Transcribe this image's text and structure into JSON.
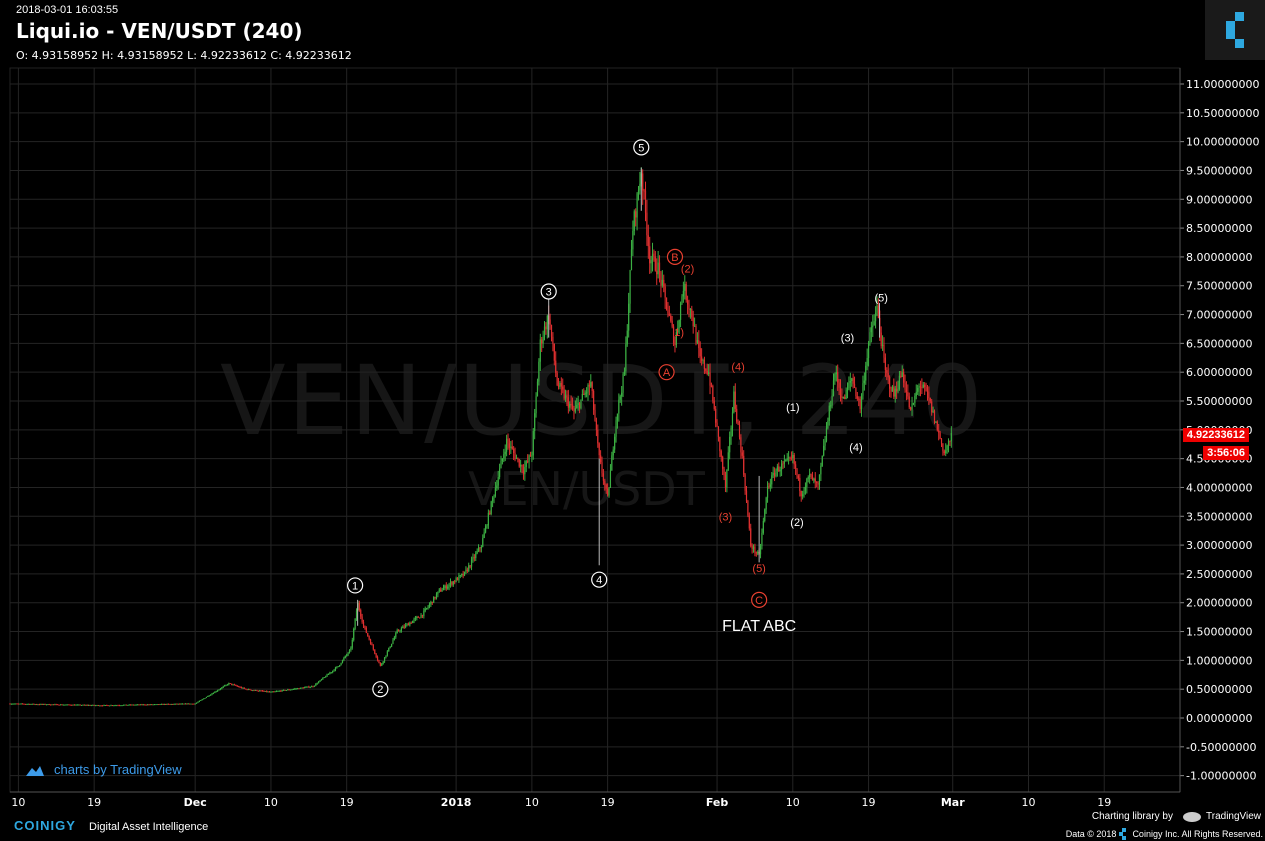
{
  "header": {
    "timestamp": "2018-03-01 16:03:55",
    "title": "Liqui.io - VEN/USDT (240)",
    "ohlc": "O: 4.93158952 H: 4.93158952 L: 4.92233612 C: 4.92233612"
  },
  "watermark": {
    "main": "VEN/USDT, 240",
    "sub": "VEN/USDT"
  },
  "current_price": {
    "value": "4.92233612",
    "countdown": "3:56:06"
  },
  "footer": {
    "tv_credit": "charts by TradingView",
    "coinigy": "COINIGY",
    "tagline": "Digital Asset Intelligence",
    "lib_credit": "Charting library by",
    "lib_tv": "TradingView",
    "copyright": "Data © 2018",
    "copyright2": "Coinigy Inc. All Rights Reserved."
  },
  "colors": {
    "up": "#3cb043",
    "down": "#e03030",
    "background": "#000000",
    "grid": "#242424",
    "accent": "#3d9be9",
    "annotation_white": "#ffffff",
    "annotation_red": "#e84030"
  },
  "chart_data": {
    "type": "candlestick",
    "ylim": [
      -1.2,
      11.3
    ],
    "y_ticks": [
      {
        "v": 11.0,
        "label": "11.00000000"
      },
      {
        "v": 10.5,
        "label": "10.50000000"
      },
      {
        "v": 10.0,
        "label": "10.00000000"
      },
      {
        "v": 9.5,
        "label": "9.50000000"
      },
      {
        "v": 9.0,
        "label": "9.00000000"
      },
      {
        "v": 8.5,
        "label": "8.50000000"
      },
      {
        "v": 8.0,
        "label": "8.00000000"
      },
      {
        "v": 7.5,
        "label": "7.50000000"
      },
      {
        "v": 7.0,
        "label": "7.00000000"
      },
      {
        "v": 6.5,
        "label": "6.50000000"
      },
      {
        "v": 6.0,
        "label": "6.00000000"
      },
      {
        "v": 5.5,
        "label": "5.50000000"
      },
      {
        "v": 5.0,
        "label": "5.00000000"
      },
      {
        "v": 4.5,
        "label": "4.50000000"
      },
      {
        "v": 4.0,
        "label": "4.00000000"
      },
      {
        "v": 3.5,
        "label": "3.50000000"
      },
      {
        "v": 3.0,
        "label": "3.00000000"
      },
      {
        "v": 2.5,
        "label": "2.50000000"
      },
      {
        "v": 2.0,
        "label": "2.00000000"
      },
      {
        "v": 1.5,
        "label": "1.50000000"
      },
      {
        "v": 1.0,
        "label": "1.00000000"
      },
      {
        "v": 0.5,
        "label": "0.50000000"
      },
      {
        "v": 0.0,
        "label": "0.00000000"
      },
      {
        "v": -0.5,
        "label": "-0.50000000"
      },
      {
        "v": -1.0,
        "label": "-1.00000000"
      }
    ],
    "x_ticks": [
      {
        "t": 0,
        "label": "10",
        "bold": false
      },
      {
        "t": 9,
        "label": "19",
        "bold": false
      },
      {
        "t": 21,
        "label": "Dec",
        "bold": true
      },
      {
        "t": 30,
        "label": "10",
        "bold": false
      },
      {
        "t": 39,
        "label": "19",
        "bold": false
      },
      {
        "t": 52,
        "label": "2018",
        "bold": true
      },
      {
        "t": 61,
        "label": "10",
        "bold": false
      },
      {
        "t": 70,
        "label": "19",
        "bold": false
      },
      {
        "t": 83,
        "label": "Feb",
        "bold": true
      },
      {
        "t": 92,
        "label": "10",
        "bold": false
      },
      {
        "t": 101,
        "label": "19",
        "bold": false
      },
      {
        "t": 111,
        "label": "Mar",
        "bold": true
      },
      {
        "t": 120,
        "label": "10",
        "bold": false
      },
      {
        "t": 129,
        "label": "19",
        "bold": false
      }
    ],
    "price_path": [
      [
        -1,
        0.25
      ],
      [
        10,
        0.22
      ],
      [
        21,
        0.25
      ],
      [
        25,
        0.6
      ],
      [
        27,
        0.5
      ],
      [
        30,
        0.45
      ],
      [
        35,
        0.55
      ],
      [
        38,
        0.9
      ],
      [
        39.5,
        1.2
      ],
      [
        40.3,
        2.0
      ],
      [
        41,
        1.6
      ],
      [
        43,
        0.9
      ],
      [
        45,
        1.5
      ],
      [
        48,
        1.8
      ],
      [
        50,
        2.2
      ],
      [
        53,
        2.5
      ],
      [
        55,
        3.0
      ],
      [
        58,
        4.8
      ],
      [
        60,
        4.3
      ],
      [
        61,
        4.6
      ],
      [
        62,
        6.5
      ],
      [
        63,
        7.0
      ],
      [
        64,
        5.8
      ],
      [
        66,
        5.3
      ],
      [
        68,
        5.8
      ],
      [
        69,
        4.5
      ],
      [
        70,
        3.8
      ],
      [
        71,
        5.2
      ],
      [
        72,
        6.0
      ],
      [
        73,
        8.5
      ],
      [
        74,
        9.5
      ],
      [
        75,
        8.0
      ],
      [
        76,
        7.8
      ],
      [
        78,
        6.5
      ],
      [
        79,
        7.5
      ],
      [
        80,
        7.0
      ],
      [
        81,
        6.2
      ],
      [
        82,
        6.0
      ],
      [
        84,
        4.0
      ],
      [
        85,
        5.6
      ],
      [
        86,
        4.5
      ],
      [
        87,
        3.0
      ],
      [
        88,
        2.8
      ],
      [
        89,
        4.0
      ],
      [
        90,
        4.3
      ],
      [
        92,
        4.5
      ],
      [
        93,
        3.9
      ],
      [
        94,
        4.2
      ],
      [
        95,
        4.0
      ],
      [
        97,
        6.0
      ],
      [
        98,
        5.5
      ],
      [
        99,
        5.9
      ],
      [
        100,
        5.4
      ],
      [
        101,
        6.5
      ],
      [
        102,
        7.1
      ],
      [
        103,
        6.0
      ],
      [
        104,
        5.6
      ],
      [
        105,
        6.0
      ],
      [
        106,
        5.3
      ],
      [
        107,
        5.8
      ],
      [
        108,
        5.6
      ],
      [
        109,
        5.1
      ],
      [
        110,
        4.6
      ],
      [
        111,
        4.92
      ]
    ],
    "waves": [
      {
        "label": "1",
        "t": 40,
        "v": 2.3,
        "style": "circle-white"
      },
      {
        "label": "2",
        "t": 43,
        "v": 0.5,
        "style": "circle-white"
      },
      {
        "label": "3",
        "t": 63,
        "v": 7.4,
        "style": "circle-white"
      },
      {
        "label": "4",
        "t": 69,
        "v": 2.4,
        "style": "circle-white"
      },
      {
        "label": "5",
        "t": 74,
        "v": 9.9,
        "style": "circle-white"
      },
      {
        "label": "A",
        "t": 77,
        "v": 6.0,
        "style": "circle-red"
      },
      {
        "label": "B",
        "t": 78,
        "v": 8.0,
        "style": "circle-red"
      },
      {
        "label": "C",
        "t": 88,
        "v": 2.05,
        "style": "circle-red"
      },
      {
        "label": "1)",
        "t": 78.5,
        "v": 6.7,
        "style": "red"
      },
      {
        "label": "(2)",
        "t": 79.5,
        "v": 7.8,
        "style": "red"
      },
      {
        "label": "(3)",
        "t": 84,
        "v": 3.5,
        "style": "red"
      },
      {
        "label": "(4)",
        "t": 85.5,
        "v": 6.1,
        "style": "red"
      },
      {
        "label": "(5)",
        "t": 88,
        "v": 2.6,
        "style": "red"
      },
      {
        "label": "(1)",
        "t": 92,
        "v": 5.4,
        "style": "white"
      },
      {
        "label": "(2)",
        "t": 92.5,
        "v": 3.4,
        "style": "white"
      },
      {
        "label": "(3)",
        "t": 98.5,
        "v": 6.6,
        "style": "white"
      },
      {
        "label": "(4)",
        "t": 99.5,
        "v": 4.7,
        "style": "white"
      },
      {
        "label": "(5)",
        "t": 102.5,
        "v": 7.3,
        "style": "white"
      }
    ],
    "annotation": {
      "text": "FLAT ABC",
      "t": 88,
      "v": 1.6
    }
  }
}
